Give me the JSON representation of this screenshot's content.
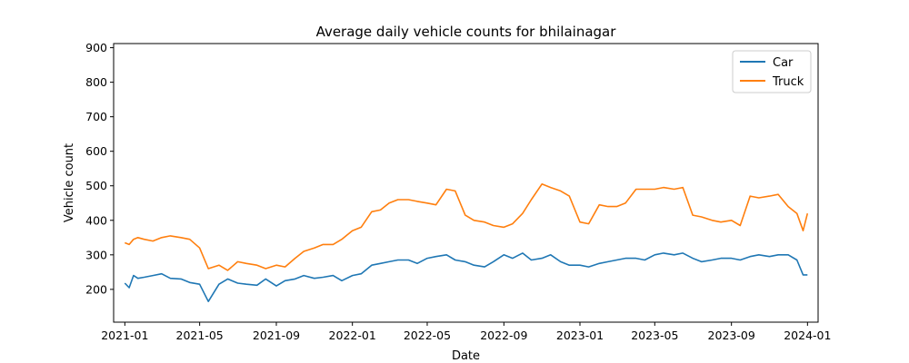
{
  "chart_data": {
    "type": "line",
    "title": "Average daily vehicle counts for bhilainagar",
    "xlabel": "Date",
    "ylabel": "Vehicle count",
    "x_range": [
      "2020-12-14",
      "2024-01-18"
    ],
    "ylim": [
      105,
      912
    ],
    "x_ticks": [
      "2021-01",
      "2021-05",
      "2021-09",
      "2022-01",
      "2022-05",
      "2022-09",
      "2023-01",
      "2023-05",
      "2023-09",
      "2024-01"
    ],
    "y_ticks": [
      200,
      300,
      400,
      500,
      600,
      700,
      800,
      900
    ],
    "legend": {
      "position": "top-right",
      "entries": [
        "Car",
        "Truck"
      ]
    },
    "grid": false,
    "series": [
      {
        "name": "Car",
        "color": "#1f77b4",
        "points": [
          [
            "2021-01-01",
            218
          ],
          [
            "2021-01-08",
            205
          ],
          [
            "2021-01-15",
            240
          ],
          [
            "2021-01-22",
            232
          ],
          [
            "2021-02-01",
            235
          ],
          [
            "2021-02-15",
            240
          ],
          [
            "2021-03-01",
            245
          ],
          [
            "2021-03-15",
            232
          ],
          [
            "2021-04-01",
            230
          ],
          [
            "2021-04-15",
            220
          ],
          [
            "2021-05-01",
            215
          ],
          [
            "2021-05-15",
            165
          ],
          [
            "2021-06-01",
            215
          ],
          [
            "2021-06-15",
            230
          ],
          [
            "2021-07-01",
            218
          ],
          [
            "2021-07-15",
            215
          ],
          [
            "2021-08-01",
            212
          ],
          [
            "2021-08-15",
            230
          ],
          [
            "2021-09-01",
            210
          ],
          [
            "2021-09-15",
            225
          ],
          [
            "2021-10-01",
            230
          ],
          [
            "2021-10-15",
            240
          ],
          [
            "2021-11-01",
            232
          ],
          [
            "2021-11-15",
            235
          ],
          [
            "2021-12-01",
            240
          ],
          [
            "2021-12-15",
            225
          ],
          [
            "2022-01-01",
            240
          ],
          [
            "2022-01-15",
            245
          ],
          [
            "2022-02-01",
            270
          ],
          [
            "2022-02-15",
            275
          ],
          [
            "2022-03-01",
            280
          ],
          [
            "2022-03-15",
            285
          ],
          [
            "2022-04-01",
            285
          ],
          [
            "2022-04-15",
            275
          ],
          [
            "2022-05-01",
            290
          ],
          [
            "2022-05-15",
            295
          ],
          [
            "2022-06-01",
            300
          ],
          [
            "2022-06-15",
            285
          ],
          [
            "2022-07-01",
            280
          ],
          [
            "2022-07-15",
            270
          ],
          [
            "2022-08-01",
            265
          ],
          [
            "2022-08-15",
            280
          ],
          [
            "2022-09-01",
            300
          ],
          [
            "2022-09-15",
            290
          ],
          [
            "2022-10-01",
            305
          ],
          [
            "2022-10-15",
            285
          ],
          [
            "2022-11-01",
            290
          ],
          [
            "2022-11-15",
            300
          ],
          [
            "2022-12-01",
            280
          ],
          [
            "2022-12-15",
            270
          ],
          [
            "2023-01-01",
            270
          ],
          [
            "2023-01-15",
            265
          ],
          [
            "2023-02-01",
            275
          ],
          [
            "2023-02-15",
            280
          ],
          [
            "2023-03-01",
            285
          ],
          [
            "2023-03-15",
            290
          ],
          [
            "2023-04-01",
            290
          ],
          [
            "2023-04-15",
            285
          ],
          [
            "2023-05-01",
            300
          ],
          [
            "2023-05-15",
            305
          ],
          [
            "2023-06-01",
            300
          ],
          [
            "2023-06-15",
            305
          ],
          [
            "2023-07-01",
            290
          ],
          [
            "2023-07-15",
            280
          ],
          [
            "2023-08-01",
            285
          ],
          [
            "2023-08-15",
            290
          ],
          [
            "2023-09-01",
            290
          ],
          [
            "2023-09-15",
            285
          ],
          [
            "2023-10-01",
            295
          ],
          [
            "2023-10-15",
            300
          ],
          [
            "2023-11-01",
            295
          ],
          [
            "2023-11-15",
            300
          ],
          [
            "2023-12-01",
            300
          ],
          [
            "2023-12-15",
            285
          ],
          [
            "2023-12-25",
            242
          ],
          [
            "2024-01-01",
            242
          ]
        ]
      },
      {
        "name": "Truck",
        "color": "#ff7f0e",
        "points": [
          [
            "2021-01-01",
            335
          ],
          [
            "2021-01-08",
            330
          ],
          [
            "2021-01-15",
            345
          ],
          [
            "2021-01-22",
            350
          ],
          [
            "2021-02-01",
            345
          ],
          [
            "2021-02-15",
            340
          ],
          [
            "2021-03-01",
            350
          ],
          [
            "2021-03-15",
            355
          ],
          [
            "2021-04-01",
            350
          ],
          [
            "2021-04-15",
            345
          ],
          [
            "2021-05-01",
            320
          ],
          [
            "2021-05-15",
            260
          ],
          [
            "2021-06-01",
            270
          ],
          [
            "2021-06-15",
            255
          ],
          [
            "2021-07-01",
            280
          ],
          [
            "2021-07-15",
            275
          ],
          [
            "2021-08-01",
            270
          ],
          [
            "2021-08-15",
            260
          ],
          [
            "2021-09-01",
            270
          ],
          [
            "2021-09-15",
            265
          ],
          [
            "2021-10-01",
            290
          ],
          [
            "2021-10-15",
            310
          ],
          [
            "2021-11-01",
            320
          ],
          [
            "2021-11-15",
            330
          ],
          [
            "2021-12-01",
            330
          ],
          [
            "2021-12-15",
            345
          ],
          [
            "2022-01-01",
            370
          ],
          [
            "2022-01-15",
            380
          ],
          [
            "2022-02-01",
            425
          ],
          [
            "2022-02-15",
            430
          ],
          [
            "2022-03-01",
            450
          ],
          [
            "2022-03-15",
            460
          ],
          [
            "2022-04-01",
            460
          ],
          [
            "2022-04-15",
            455
          ],
          [
            "2022-05-01",
            450
          ],
          [
            "2022-05-15",
            445
          ],
          [
            "2022-06-01",
            490
          ],
          [
            "2022-06-15",
            485
          ],
          [
            "2022-07-01",
            415
          ],
          [
            "2022-07-15",
            400
          ],
          [
            "2022-08-01",
            395
          ],
          [
            "2022-08-15",
            385
          ],
          [
            "2022-09-01",
            380
          ],
          [
            "2022-09-15",
            390
          ],
          [
            "2022-10-01",
            420
          ],
          [
            "2022-10-15",
            460
          ],
          [
            "2022-11-01",
            505
          ],
          [
            "2022-11-15",
            495
          ],
          [
            "2022-12-01",
            485
          ],
          [
            "2022-12-15",
            470
          ],
          [
            "2023-01-01",
            395
          ],
          [
            "2023-01-15",
            390
          ],
          [
            "2023-02-01",
            445
          ],
          [
            "2023-02-15",
            440
          ],
          [
            "2023-03-01",
            440
          ],
          [
            "2023-03-15",
            450
          ],
          [
            "2023-04-01",
            490
          ],
          [
            "2023-04-15",
            490
          ],
          [
            "2023-05-01",
            490
          ],
          [
            "2023-05-15",
            495
          ],
          [
            "2023-06-01",
            490
          ],
          [
            "2023-06-15",
            495
          ],
          [
            "2023-07-01",
            415
          ],
          [
            "2023-07-15",
            410
          ],
          [
            "2023-08-01",
            400
          ],
          [
            "2023-08-15",
            395
          ],
          [
            "2023-09-01",
            400
          ],
          [
            "2023-09-15",
            385
          ],
          [
            "2023-10-01",
            470
          ],
          [
            "2023-10-15",
            465
          ],
          [
            "2023-11-01",
            470
          ],
          [
            "2023-11-15",
            475
          ],
          [
            "2023-12-01",
            440
          ],
          [
            "2023-12-15",
            420
          ],
          [
            "2023-12-25",
            370
          ],
          [
            "2024-01-01",
            420
          ]
        ]
      }
    ]
  }
}
